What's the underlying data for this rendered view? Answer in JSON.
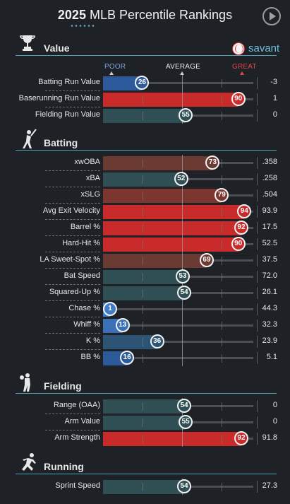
{
  "header": {
    "year": "2025",
    "title": "MLB Percentile Rankings"
  },
  "brand": {
    "name": "savant"
  },
  "scale": {
    "poor": "POOR",
    "average": "AVERAGE",
    "great": "GREAT"
  },
  "colors": {
    "accent": "#4fa0b2",
    "great": "#c92a2a",
    "poor": "#2d5a9b",
    "neutral": "#2f4f55"
  },
  "sections": [
    {
      "key": "value",
      "title": "Value",
      "icon": "trophy-icon",
      "rows": [
        {
          "label": "Batting Run Value",
          "percentile": 26,
          "value": "-3",
          "color": "#2d5a9b"
        },
        {
          "label": "Baserunning Run Value",
          "percentile": 90,
          "value": "1",
          "color": "#c92a2a"
        },
        {
          "label": "Fielding Run Value",
          "percentile": 55,
          "value": "0",
          "color": "#2f4f55"
        }
      ]
    },
    {
      "key": "batting",
      "title": "Batting",
      "icon": "batter-icon",
      "rows": [
        {
          "label": "xwOBA",
          "percentile": 73,
          "value": ".358",
          "color": "#6b3a33"
        },
        {
          "label": "xBA",
          "percentile": 52,
          "value": ".258",
          "color": "#2f4f55"
        },
        {
          "label": "xSLG",
          "percentile": 79,
          "value": ".504",
          "color": "#7d3530"
        },
        {
          "label": "Avg Exit Velocity",
          "percentile": 94,
          "value": "93.9",
          "color": "#c92a2a"
        },
        {
          "label": "Barrel %",
          "percentile": 92,
          "value": "17.5",
          "color": "#c92a2a"
        },
        {
          "label": "Hard-Hit %",
          "percentile": 90,
          "value": "52.5",
          "color": "#c92a2a"
        },
        {
          "label": "LA Sweet-Spot %",
          "percentile": 69,
          "value": "37.5",
          "color": "#6b3a33"
        },
        {
          "label": "Bat Speed",
          "percentile": 53,
          "value": "72.0",
          "color": "#2f4f55"
        },
        {
          "label": "Squared-Up %",
          "percentile": 54,
          "value": "26.1",
          "color": "#2f4f55"
        },
        {
          "label": "Chase %",
          "percentile": 1,
          "value": "44.3",
          "color": "#3f7cc9"
        },
        {
          "label": "Whiff %",
          "percentile": 13,
          "value": "32.3",
          "color": "#3b6fb6"
        },
        {
          "label": "K %",
          "percentile": 36,
          "value": "23.9",
          "color": "#2e5475"
        },
        {
          "label": "BB %",
          "percentile": 16,
          "value": "5.1",
          "color": "#2d5a9b"
        }
      ]
    },
    {
      "key": "fielding",
      "title": "Fielding",
      "icon": "fielder-icon",
      "rows": [
        {
          "label": "Range (OAA)",
          "percentile": 54,
          "value": "0",
          "color": "#2f4f55"
        },
        {
          "label": "Arm Value",
          "percentile": 55,
          "value": "0",
          "color": "#2f4f55"
        },
        {
          "label": "Arm Strength",
          "percentile": 92,
          "value": "91.8",
          "color": "#c92a2a"
        }
      ]
    },
    {
      "key": "running",
      "title": "Running",
      "icon": "runner-icon",
      "rows": [
        {
          "label": "Sprint Speed",
          "percentile": 54,
          "value": "27.3",
          "color": "#2f4f55"
        }
      ]
    }
  ]
}
